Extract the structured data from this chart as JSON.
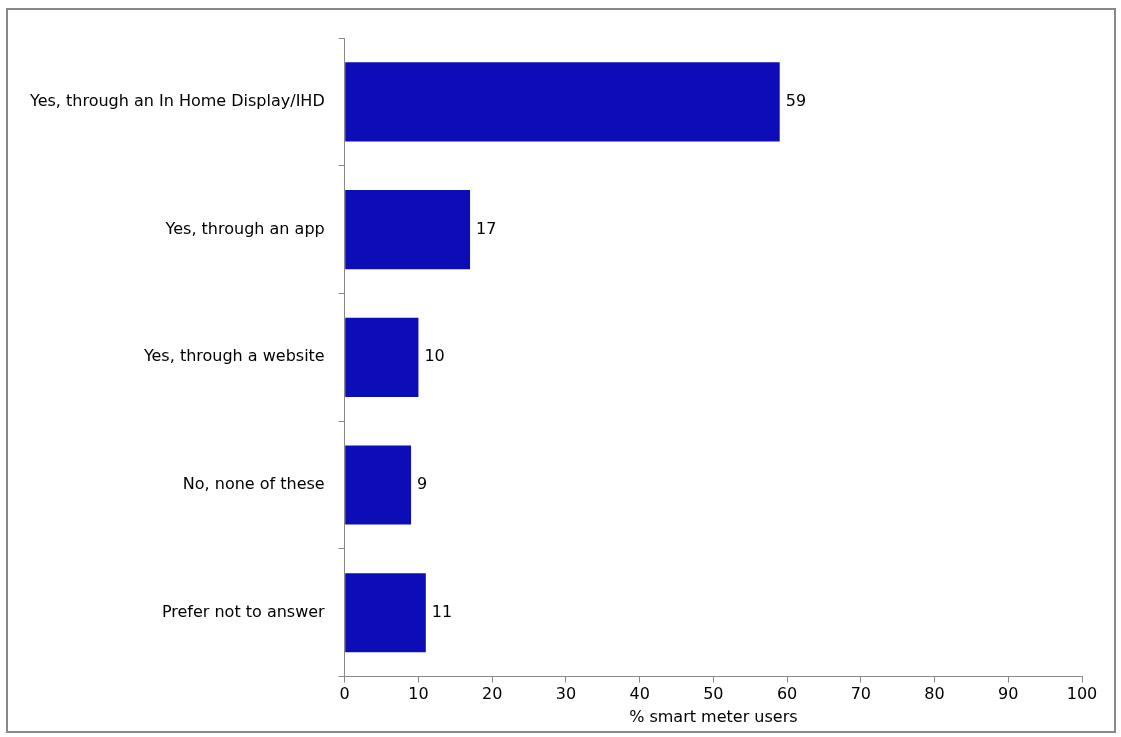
{
  "chart_data": {
    "type": "bar",
    "orientation": "horizontal",
    "categories": [
      "Yes, through an In Home Display/IHD",
      "Yes, through an app",
      "Yes, through a website",
      "No, none of these",
      "Prefer not to answer"
    ],
    "values": [
      59,
      17,
      10,
      9,
      11
    ],
    "color": "#0d0db8",
    "data_labels": true,
    "xlabel": "% smart meter users",
    "xlim": [
      0,
      100
    ],
    "xticks": [
      0,
      10,
      20,
      30,
      40,
      50,
      60,
      70,
      80,
      90,
      100
    ],
    "grid": false,
    "legend": false
  }
}
